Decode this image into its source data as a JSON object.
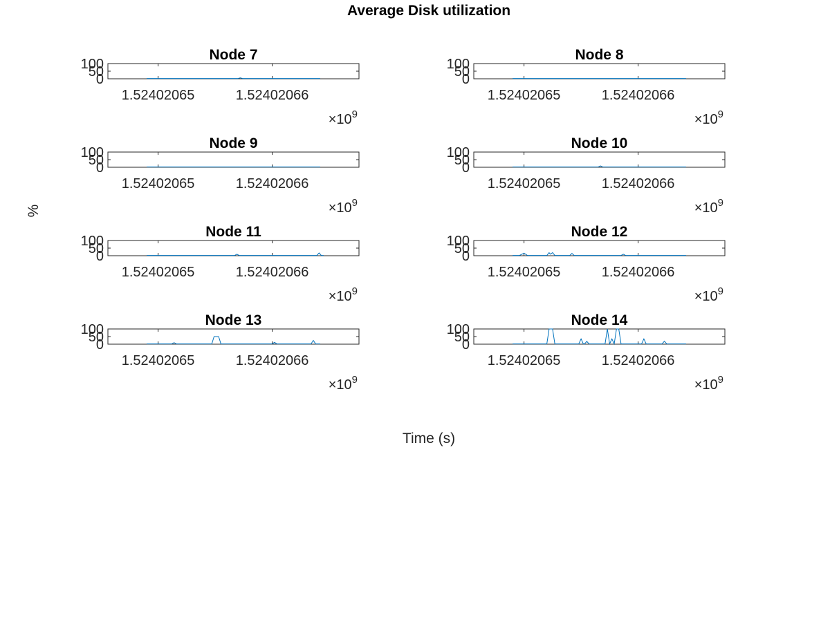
{
  "figure_title": "Average Disk utilization",
  "xlabel": "Time (s)",
  "ylabel": "%",
  "exponent_label": "×10",
  "exponent_power": "9",
  "colors": {
    "line": "#0072BD",
    "axes": "#262626",
    "tick_text": "#262626",
    "title": "#000000"
  },
  "chart_data": [
    {
      "type": "line",
      "title": "Node 7",
      "x_tick_labels": [
        "1.52402065",
        "1.52402066"
      ],
      "y_tick_labels": [
        "0",
        "50",
        "100"
      ],
      "xlim": [
        1524020645.6,
        1524020667.6
      ],
      "ylim": [
        0,
        100
      ],
      "grid": false,
      "x": [
        1524020649.0,
        1524020657.0,
        1524020657.2,
        1524020657.4,
        1524020664.2
      ],
      "y": [
        2,
        2,
        6,
        2,
        2
      ]
    },
    {
      "type": "line",
      "title": "Node 8",
      "x_tick_labels": [
        "1.52402065",
        "1.52402066"
      ],
      "y_tick_labels": [
        "0",
        "50",
        "100"
      ],
      "xlim": [
        1524020645.6,
        1524020667.6
      ],
      "ylim": [
        0,
        100
      ],
      "grid": false,
      "x": [
        1524020649.0,
        1524020664.2
      ],
      "y": [
        2,
        2
      ]
    },
    {
      "type": "line",
      "title": "Node 9",
      "x_tick_labels": [
        "1.52402065",
        "1.52402066"
      ],
      "y_tick_labels": [
        "0",
        "50",
        "100"
      ],
      "xlim": [
        1524020645.6,
        1524020667.6
      ],
      "ylim": [
        0,
        100
      ],
      "grid": false,
      "x": [
        1524020649.0,
        1524020664.2
      ],
      "y": [
        2,
        2
      ]
    },
    {
      "type": "line",
      "title": "Node 10",
      "x_tick_labels": [
        "1.52402065",
        "1.52402066"
      ],
      "y_tick_labels": [
        "0",
        "50",
        "100"
      ],
      "xlim": [
        1524020645.6,
        1524020667.6
      ],
      "ylim": [
        0,
        100
      ],
      "grid": false,
      "x": [
        1524020649.0,
        1524020656.5,
        1524020656.7,
        1524020656.9,
        1524020664.2
      ],
      "y": [
        2,
        2,
        9,
        2,
        2
      ]
    },
    {
      "type": "line",
      "title": "Node 11",
      "x_tick_labels": [
        "1.52402065",
        "1.52402066"
      ],
      "y_tick_labels": [
        "0",
        "50",
        "100"
      ],
      "xlim": [
        1524020645.6,
        1524020667.6
      ],
      "ylim": [
        0,
        100
      ],
      "grid": false,
      "x": [
        1524020649.0,
        1524020656.7,
        1524020656.9,
        1524020657.1,
        1524020663.9,
        1524020664.1,
        1524020664.3,
        1524020664.5
      ],
      "y": [
        2,
        2,
        10,
        2,
        2,
        18,
        2,
        2
      ]
    },
    {
      "type": "line",
      "title": "Node 12",
      "x_tick_labels": [
        "1.52402065",
        "1.52402066"
      ],
      "y_tick_labels": [
        "0",
        "50",
        "100"
      ],
      "xlim": [
        1524020645.6,
        1524020667.6
      ],
      "ylim": [
        0,
        100
      ],
      "grid": false,
      "x": [
        1524020649.0,
        1524020649.6,
        1524020650.0,
        1524020650.3,
        1524020652.0,
        1524020652.2,
        1524020652.3,
        1524020652.5,
        1524020652.7,
        1524020654.0,
        1524020654.2,
        1524020654.4,
        1524020658.5,
        1524020658.7,
        1524020658.9,
        1524020664.2
      ],
      "y": [
        2,
        2,
        17,
        2,
        2,
        20,
        10,
        20,
        2,
        2,
        15,
        2,
        2,
        10,
        2,
        2
      ]
    },
    {
      "type": "line",
      "title": "Node 13",
      "x_tick_labels": [
        "1.52402065",
        "1.52402066"
      ],
      "y_tick_labels": [
        "0",
        "50",
        "100"
      ],
      "xlim": [
        1524020645.6,
        1524020667.6
      ],
      "ylim": [
        0,
        100
      ],
      "grid": false,
      "x": [
        1524020649.0,
        1524020651.2,
        1524020651.4,
        1524020651.6,
        1524020654.7,
        1524020654.9,
        1524020655.3,
        1524020655.5,
        1524020655.7,
        1524020660.0,
        1524020660.2,
        1524020660.4,
        1524020663.4,
        1524020663.6,
        1524020663.8,
        1524020664.2
      ],
      "y": [
        2,
        2,
        10,
        2,
        2,
        50,
        50,
        2,
        2,
        2,
        12,
        2,
        2,
        25,
        2,
        2
      ]
    },
    {
      "type": "line",
      "title": "Node 14",
      "x_tick_labels": [
        "1.52402065",
        "1.52402066"
      ],
      "y_tick_labels": [
        "0",
        "50",
        "100"
      ],
      "xlim": [
        1524020645.6,
        1524020667.6
      ],
      "ylim": [
        0,
        100
      ],
      "grid": false,
      "x": [
        1524020649.0,
        1524020652.0,
        1524020652.2,
        1524020652.5,
        1524020652.7,
        1524020654.8,
        1524020655.0,
        1524020655.2,
        1524020655.3,
        1524020655.5,
        1524020655.7,
        1524020657.1,
        1524020657.3,
        1524020657.5,
        1524020657.7,
        1524020657.9,
        1524020658.1,
        1524020658.3,
        1524020658.5,
        1524020658.7,
        1524020660.3,
        1524020660.5,
        1524020660.7,
        1524020662.1,
        1524020662.3,
        1524020662.5,
        1524020664.2
      ],
      "y": [
        2,
        2,
        100,
        100,
        2,
        2,
        35,
        2,
        2,
        18,
        2,
        2,
        100,
        2,
        35,
        2,
        100,
        100,
        2,
        2,
        2,
        35,
        2,
        2,
        20,
        2,
        2
      ]
    }
  ]
}
